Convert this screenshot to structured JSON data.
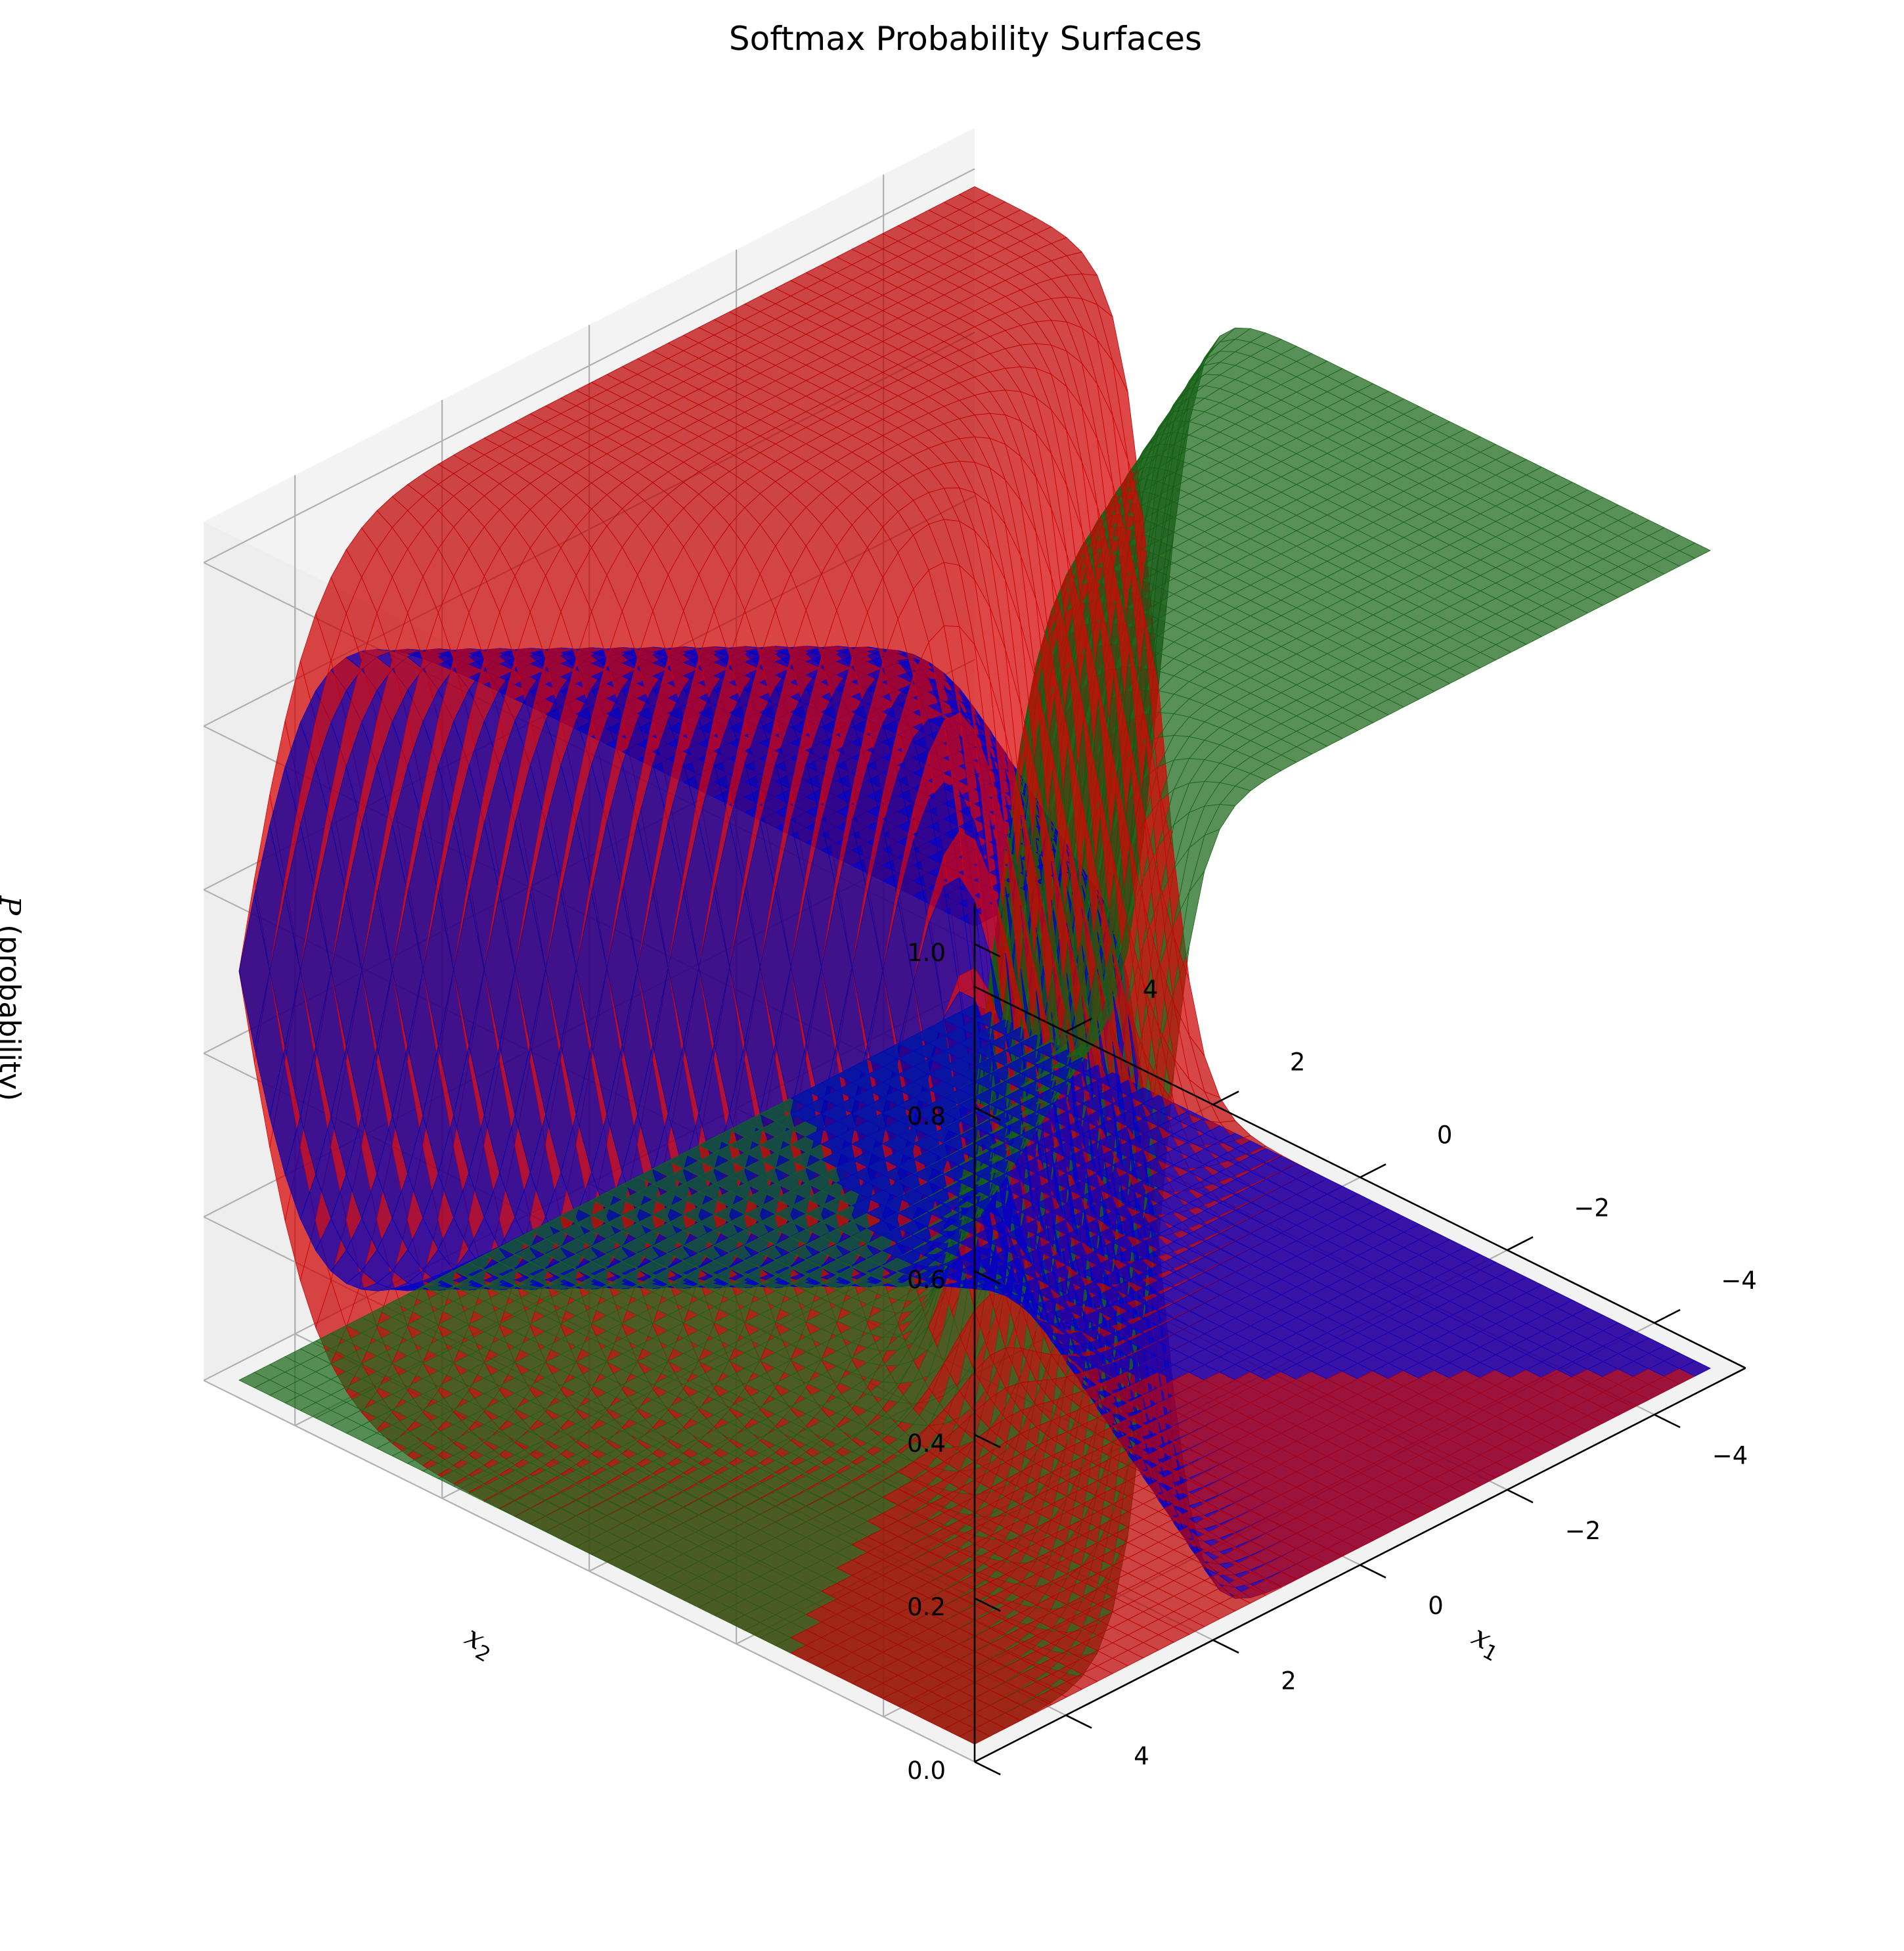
{
  "chart_data": {
    "type": "surface3d",
    "title": "Softmax Probability Surfaces",
    "xlabel": "x1",
    "ylabel": "x2",
    "zlabel": "P (probability)",
    "xlabel_parts": {
      "base": "x",
      "sub": "1"
    },
    "ylabel_parts": {
      "base": "x",
      "sub": "2"
    },
    "zlabel_parts": {
      "math": "P",
      "rest": " (probability)"
    },
    "x_range": [
      -5,
      5
    ],
    "y_range": [
      -5,
      5
    ],
    "z_range": [
      0,
      1
    ],
    "x_ticks": [
      "−4",
      "−2",
      "0",
      "2",
      "4"
    ],
    "y_ticks": [
      "−4",
      "−2",
      "0",
      "2",
      "4"
    ],
    "z_ticks": [
      "0.0",
      "0.2",
      "0.4",
      "0.6",
      "0.8",
      "1.0"
    ],
    "grid": true,
    "series": [
      {
        "color": "#cc0000",
        "logits": "2*x1",
        "description_formula": "exp(2*x1)/sum"
      },
      {
        "color": "#1a6e1a",
        "logits": "-2*x1 - 2*x2",
        "description_formula": "exp(-2*x1-2*x2)/sum"
      },
      {
        "color": "#0000dd",
        "logits": "2*x2",
        "description_formula": "exp(2*x2)/sum"
      }
    ]
  }
}
